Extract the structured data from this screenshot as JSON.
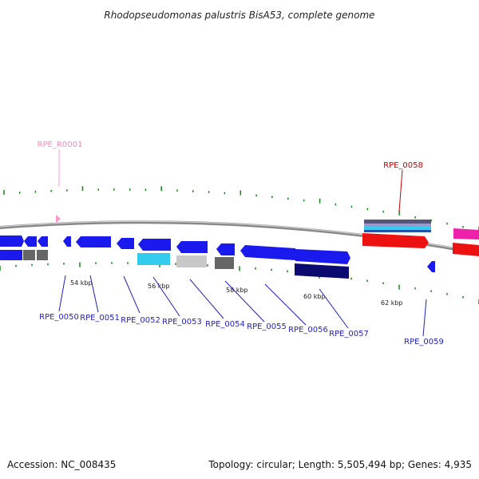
{
  "title": "Rhodopseudomonas palustris BisA53, complete genome",
  "footer": {
    "accession": "Accession: NC_008435",
    "summary": "Topology: circular; Length: 5,505,494 bp; Genes: 4,935"
  },
  "colors": {
    "cds_blue": "#1a1aee",
    "label_blue": "#1f1fbf",
    "rrna_pink": "#ff99cc",
    "red_gene": "#ee1111",
    "magenta_gene": "#ee22aa",
    "cyan": "#33ccee",
    "light_gray": "#c8c8c8",
    "dark_gray": "#666666",
    "navy": "#0a0a70",
    "tick_green": "#118811",
    "backbone": "#999999"
  },
  "scale_labels": [
    "54 kbp",
    "56 kbp",
    "58 kbp",
    "60 kbp",
    "62 kbp"
  ],
  "gene_labels": [
    {
      "id": "rpe_r0001",
      "text": "RPE_R0001",
      "color": "#ff88bb"
    },
    {
      "id": "rpe_0058",
      "text": "RPE_0058",
      "color": "#cc0000"
    },
    {
      "id": "rpe_0050",
      "text": "RPE_0050",
      "color": "#1f1fbf"
    },
    {
      "id": "rpe_0051",
      "text": "RPE_0051",
      "color": "#1f1fbf"
    },
    {
      "id": "rpe_0052",
      "text": "RPE_0052",
      "color": "#1f1fbf"
    },
    {
      "id": "rpe_0053",
      "text": "RPE_0053",
      "color": "#1f1fbf"
    },
    {
      "id": "rpe_0054",
      "text": "RPE_0054",
      "color": "#1f1fbf"
    },
    {
      "id": "rpe_0055",
      "text": "RPE_0055",
      "color": "#1f1fbf"
    },
    {
      "id": "rpe_0056",
      "text": "RPE_0056",
      "color": "#1f1fbf"
    },
    {
      "id": "rpe_0057",
      "text": "RPE_0057",
      "color": "#1f1fbf"
    },
    {
      "id": "rpe_0059",
      "text": "RPE_0059",
      "color": "#1f1fbf"
    }
  ]
}
